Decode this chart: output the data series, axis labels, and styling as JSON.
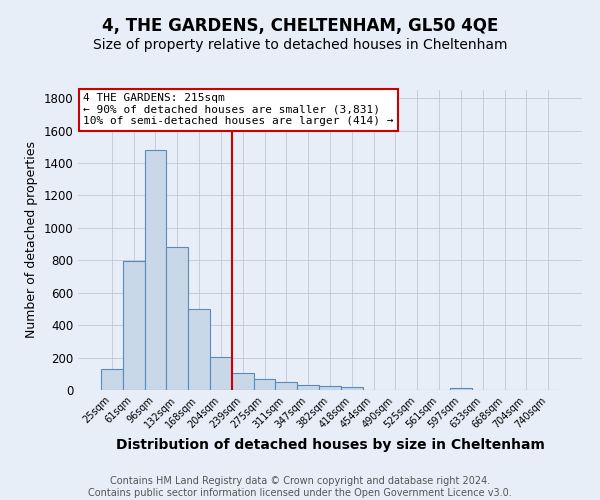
{
  "title": "4, THE GARDENS, CHELTENHAM, GL50 4QE",
  "subtitle": "Size of property relative to detached houses in Cheltenham",
  "xlabel": "Distribution of detached houses by size in Cheltenham",
  "ylabel": "Number of detached properties",
  "categories": [
    "25sqm",
    "61sqm",
    "96sqm",
    "132sqm",
    "168sqm",
    "204sqm",
    "239sqm",
    "275sqm",
    "311sqm",
    "347sqm",
    "382sqm",
    "418sqm",
    "454sqm",
    "490sqm",
    "525sqm",
    "561sqm",
    "597sqm",
    "633sqm",
    "668sqm",
    "704sqm",
    "740sqm"
  ],
  "values": [
    130,
    795,
    1480,
    880,
    500,
    205,
    105,
    65,
    48,
    33,
    25,
    18,
    0,
    0,
    0,
    0,
    13,
    0,
    0,
    0,
    0
  ],
  "bar_color": "#c8d8e8",
  "bar_edge_color": "#5a8ab8",
  "vline_x": 5.5,
  "vline_color": "#cc0000",
  "annotation_text": "4 THE GARDENS: 215sqm\n← 90% of detached houses are smaller (3,831)\n10% of semi-detached houses are larger (414) →",
  "annotation_box_color": "#ffffff",
  "annotation_box_edge_color": "#cc0000",
  "ylim": [
    0,
    1850
  ],
  "yticks": [
    0,
    200,
    400,
    600,
    800,
    1000,
    1200,
    1400,
    1600,
    1800
  ],
  "grid_color": "#c0c8d8",
  "background_color": "#e8eef8",
  "footer": "Contains HM Land Registry data © Crown copyright and database right 2024.\nContains public sector information licensed under the Open Government Licence v3.0.",
  "title_fontsize": 12,
  "subtitle_fontsize": 10,
  "xlabel_fontsize": 10,
  "ylabel_fontsize": 9,
  "footer_fontsize": 7,
  "annotation_fontsize": 8
}
